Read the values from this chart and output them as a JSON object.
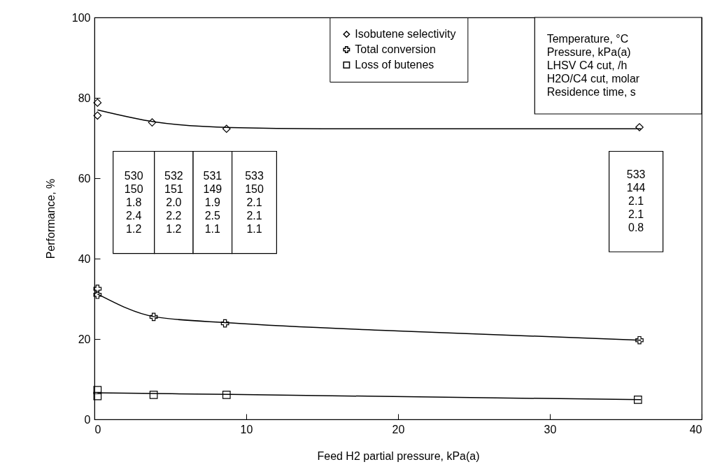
{
  "chart_data": {
    "type": "scatter",
    "xlabel": "Feed H2 partial pressure, kPa(a)",
    "ylabel": "Performance, %",
    "xlim": [
      0,
      40
    ],
    "xticks": [
      0,
      10,
      20,
      30,
      40
    ],
    "ylim": [
      0,
      100
    ],
    "yticks": [
      0,
      20,
      40,
      60,
      80,
      100
    ],
    "grid": false,
    "legend": "top",
    "series": [
      {
        "name": "Isobutene selectivity",
        "color": "#000000",
        "marker": "diamond",
        "x": [
          0.2,
          0.2,
          3.8,
          8.7,
          35.9
        ],
        "values": [
          78.8,
          75.6,
          73.9,
          72.3,
          72.7
        ]
      },
      {
        "name": "Total conversion",
        "color": "#000000",
        "marker": "cross",
        "x": [
          0.2,
          0.2,
          3.9,
          8.6,
          35.9
        ],
        "values": [
          32.5,
          31.0,
          25.5,
          23.9,
          19.7
        ]
      },
      {
        "name": "Loss of butenes",
        "color": "#000000",
        "marker": "square",
        "x": [
          0.2,
          0.2,
          3.9,
          8.7,
          35.8
        ],
        "values": [
          7.3,
          5.8,
          6.1,
          6.1,
          4.9
        ]
      },
      {
        "type": "line",
        "color": "#000000",
        "marker": "none",
        "x": [
          0.2,
          4,
          9,
          15,
          36
        ],
        "values": [
          77,
          74,
          72.6,
          72.3,
          72.3
        ]
      },
      {
        "type": "line",
        "color": "#000000",
        "marker": "none",
        "x": [
          0.2,
          4,
          9,
          20,
          36
        ],
        "values": [
          31.2,
          25.5,
          24,
          22,
          19.7
        ]
      },
      {
        "type": "line",
        "color": "#000000",
        "marker": "none",
        "x": [
          0.2,
          9,
          36
        ],
        "values": [
          6.6,
          6.2,
          4.9
        ]
      }
    ],
    "annotations": [
      "Temperature, °C\nPressure, kPa(a)\nLHSV C4 cut, /h\nH2O/C4 cut, molar\nResidence time, s",
      "530\n150\n1.8\n2.4\n1.2",
      "532\n151\n2.0\n2.2\n1.2",
      "531\n149\n1.9\n2.5\n1.1",
      "533\n150\n2.1\n2.1\n1.1",
      "533\n144\n2.1\n2.1\n0.8"
    ]
  }
}
